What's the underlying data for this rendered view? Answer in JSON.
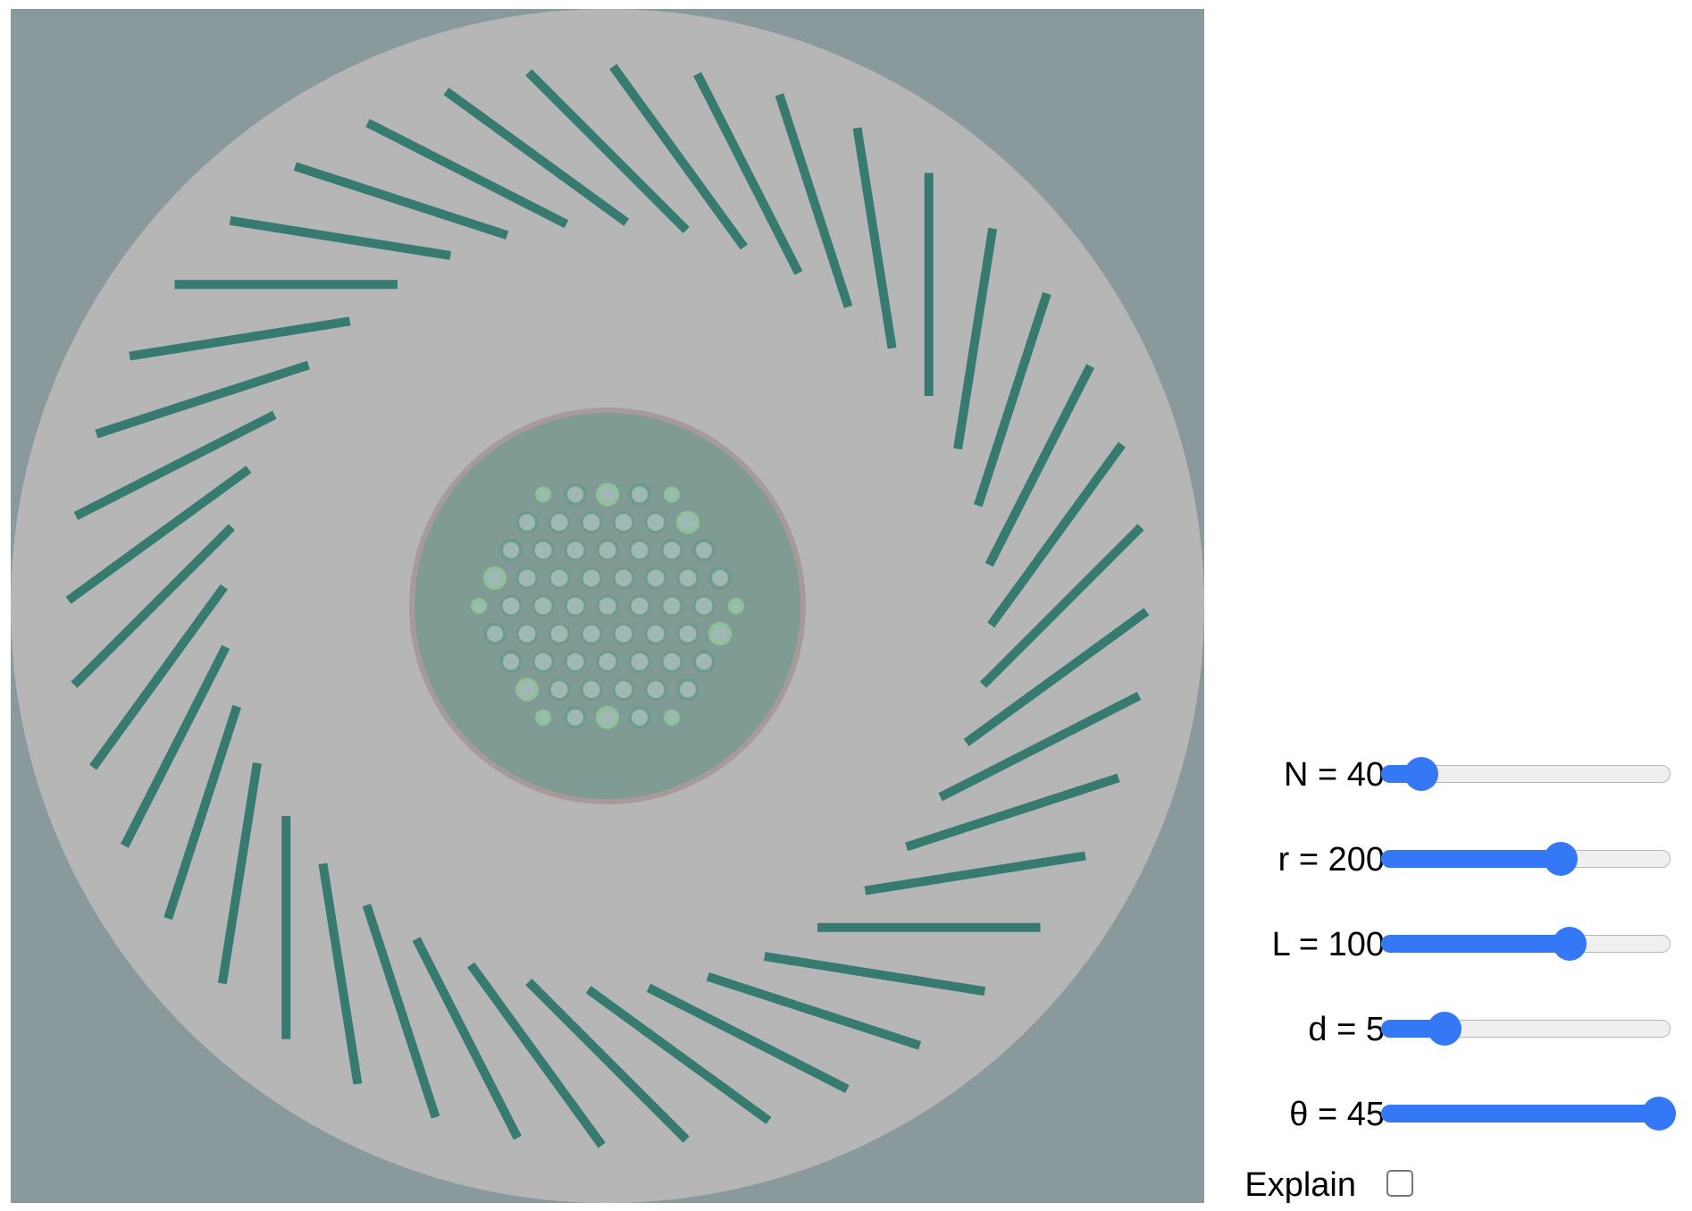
{
  "colors": {
    "background": "#8a9a9c",
    "disc": "#b6b6b6",
    "bar": "#367a70",
    "center_fill": "#7f9b94",
    "center_ring": "#a69a9a",
    "dot": "#9fb8b3",
    "dot_ring": "#6f9990",
    "dot_ring_alt": "#8fc09a",
    "slider_accent": "#3478f6"
  },
  "simulation": {
    "N": 40,
    "r": 200,
    "L": 100,
    "d": 5,
    "theta": 45
  },
  "controls": [
    {
      "name": "N",
      "label": "N = 40",
      "fraction": 0.14
    },
    {
      "name": "r",
      "label": "r = 200",
      "fraction": 0.62
    },
    {
      "name": "L",
      "label": "L = 100",
      "fraction": 0.65
    },
    {
      "name": "d",
      "label": "d = 5",
      "fraction": 0.22
    },
    {
      "name": "theta",
      "label": "θ = 45",
      "fraction": 0.96
    }
  ],
  "explain": {
    "label": "Explain",
    "checked": false
  }
}
